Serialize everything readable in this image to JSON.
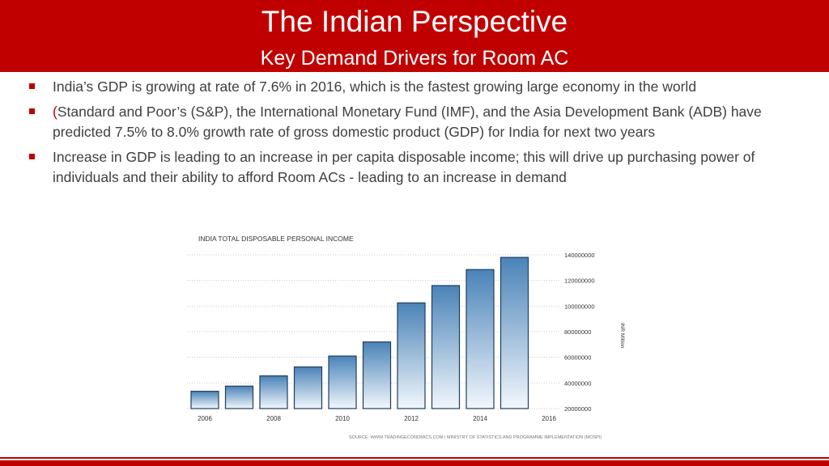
{
  "slide": {
    "title": "The Indian Perspective",
    "subtitle": "Key Demand Drivers for Room AC",
    "colors": {
      "accent": "#c00000",
      "bar_top": "#4a83b8",
      "bar_bottom": "#f2f7fc",
      "text": "#404040"
    }
  },
  "bullets": [
    {
      "text": "India’s GDP is growing at rate of 7.6% in 2016, which is the fastest growing large economy in the world"
    },
    {
      "prefix": "(",
      "text": "Standard and Poor’s (S&P), the International Monetary Fund (IMF), and the Asia Development Bank (ADB) have predicted 7.5% to 8.0% growth rate of gross domestic product (GDP) for India for next two years"
    },
    {
      "text": "Increase in GDP is leading to an increase in per capita disposable income; this will drive up purchasing power of individuals and their ability to afford Room ACs - leading to an increase in demand"
    }
  ],
  "chart_data": {
    "type": "bar",
    "title": "INDIA TOTAL DISPOSABLE PERSONAL INCOME",
    "ylabel": "INR Million",
    "source": "SOURCE: WWW.TRADINGECONOMICS.COM | MINISTRY OF STATISTICS AND PROGRAMME IMPLEMENTATION (MOSPI)",
    "categories": [
      "2006",
      "2007",
      "2008",
      "2009",
      "2010",
      "2011",
      "2012",
      "2013",
      "2014",
      "2015"
    ],
    "values": [
      33500000,
      37500000,
      45500000,
      52500000,
      61000000,
      72000000,
      102500000,
      116000000,
      128500000,
      138000000
    ],
    "ylim": [
      20000000,
      140000000
    ],
    "yticks": [
      "20000000",
      "40000000",
      "60000000",
      "80000000",
      "100000000",
      "120000000",
      "140000000"
    ],
    "xticks": [
      "2006",
      "2008",
      "2010",
      "2012",
      "2014",
      "2016"
    ],
    "grid": true,
    "legend": "none"
  }
}
